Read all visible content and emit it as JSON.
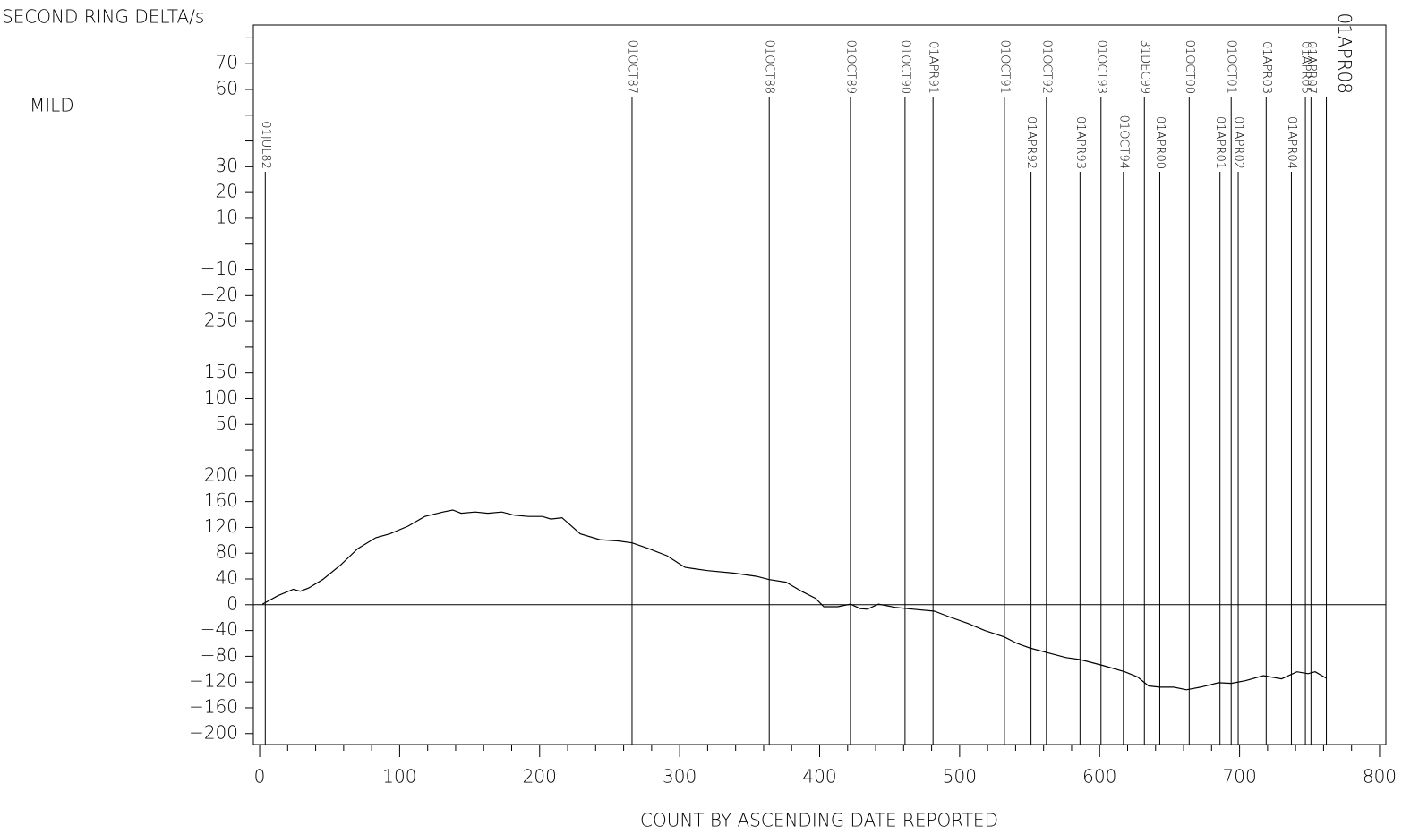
{
  "chart_data": {
    "type": "line",
    "title": "SECOND RING DELTA/s",
    "subtitle": "MILD",
    "x_label": "COUNT BY ASCENDING DATE REPORTED",
    "xlim": [
      -4.5,
      804.5
    ],
    "ylim": [
      -217,
      900
    ],
    "xticks": [
      0,
      100,
      200,
      300,
      400,
      500,
      600,
      700,
      800
    ],
    "xminor": [
      20,
      40,
      60,
      80,
      120,
      140,
      160,
      180,
      220,
      240,
      260,
      280,
      320,
      340,
      360,
      380,
      420,
      440,
      460,
      480,
      520,
      540,
      560,
      580,
      620,
      640,
      660,
      680,
      720,
      740,
      760,
      780
    ],
    "yticks": [
      {
        "value": -200,
        "label": "−200"
      },
      {
        "value": -160,
        "label": "−160"
      },
      {
        "value": -120,
        "label": "−120"
      },
      {
        "value": -80,
        "label": "−80"
      },
      {
        "value": -40,
        "label": "−40"
      },
      0,
      40,
      80,
      120,
      160,
      200,
      {
        "value": 280,
        "label": "50"
      },
      {
        "value": 320,
        "label": "100"
      },
      {
        "value": 360,
        "label": "150"
      },
      {
        "value": 440,
        "label": "250"
      },
      {
        "value": 480,
        "label": "−20"
      },
      {
        "value": 520,
        "label": "−10"
      },
      {
        "value": 600,
        "label": "10"
      },
      {
        "value": 640,
        "label": "20"
      },
      {
        "value": 680,
        "label": "30"
      },
      {
        "value": 800,
        "label": "60"
      },
      {
        "value": 840,
        "label": "70"
      }
    ],
    "yminor": [
      240,
      400,
      560,
      720,
      760,
      880
    ],
    "events": [
      {
        "label": "01JUL82",
        "x": 4
      },
      {
        "label": "01OCT87",
        "x": 266
      },
      {
        "label": "01OCT88",
        "x": 364
      },
      {
        "label": "01OCT89",
        "x": 422
      },
      {
        "label": "01OCT90",
        "x": 461
      },
      {
        "label": "01APR91",
        "x": 481
      },
      {
        "label": "01OCT91",
        "x": 532
      },
      {
        "label": "01APR92",
        "x": 551
      },
      {
        "label": "01OCT92",
        "x": 562
      },
      {
        "label": "01APR93",
        "x": 586
      },
      {
        "label": "01OCT93",
        "x": 601
      },
      {
        "label": "01OCT94",
        "x": 617
      },
      {
        "label": "31DEC99",
        "x": 632
      },
      {
        "label": "01APR00",
        "x": 643
      },
      {
        "label": "01OCT00",
        "x": 664
      },
      {
        "label": "01APR01",
        "x": 686
      },
      {
        "label": "01OCT01",
        "x": 694
      },
      {
        "label": "01APR02",
        "x": 699
      },
      {
        "label": "01APR03",
        "x": 719
      },
      {
        "label": "01APR04",
        "x": 737
      },
      {
        "label": "01APR05",
        "x": 747
      },
      {
        "label": "01APR07",
        "x": 751
      },
      {
        "label": "01APR08",
        "x": 762
      }
    ],
    "series": [
      {
        "color": "#000000",
        "x": [
          2,
          13,
          24,
          29,
          35,
          45,
          58,
          70,
          83,
          93,
          106,
          118,
          131,
          138,
          144,
          154,
          163,
          173,
          182,
          192,
          202,
          208,
          216,
          229,
          243,
          256,
          266,
          278,
          291,
          301,
          304,
          310,
          320,
          339,
          355,
          364,
          376,
          387,
          397,
          403,
          413,
          422,
          429,
          434,
          442,
          454,
          467,
          482,
          493,
          506,
          518,
          532,
          541,
          550,
          562,
          576,
          586,
          602,
          618,
          627,
          635,
          643,
          653,
          662,
          672,
          685,
          694,
          704,
          717,
          730,
          741,
          749,
          754,
          762
        ],
        "values": [
          1,
          14,
          24,
          21,
          26,
          39,
          62,
          87,
          104,
          110,
          122,
          137,
          144,
          147,
          142,
          144,
          142,
          144,
          139,
          137,
          137,
          133,
          135,
          110,
          101,
          99,
          96,
          87,
          76,
          62,
          58,
          56,
          53,
          49,
          44,
          39,
          35,
          21,
          10,
          -3,
          -3,
          1,
          -6,
          -7,
          1,
          -4,
          -7,
          -10,
          -19,
          -29,
          -40,
          -50,
          -60,
          -67,
          -74,
          -82,
          -85,
          -94,
          -104,
          -112,
          -126,
          -128,
          -128,
          -132,
          -128,
          -121,
          -122,
          -118,
          -110,
          -115,
          -104,
          -107,
          -104,
          -114
        ]
      }
    ]
  }
}
